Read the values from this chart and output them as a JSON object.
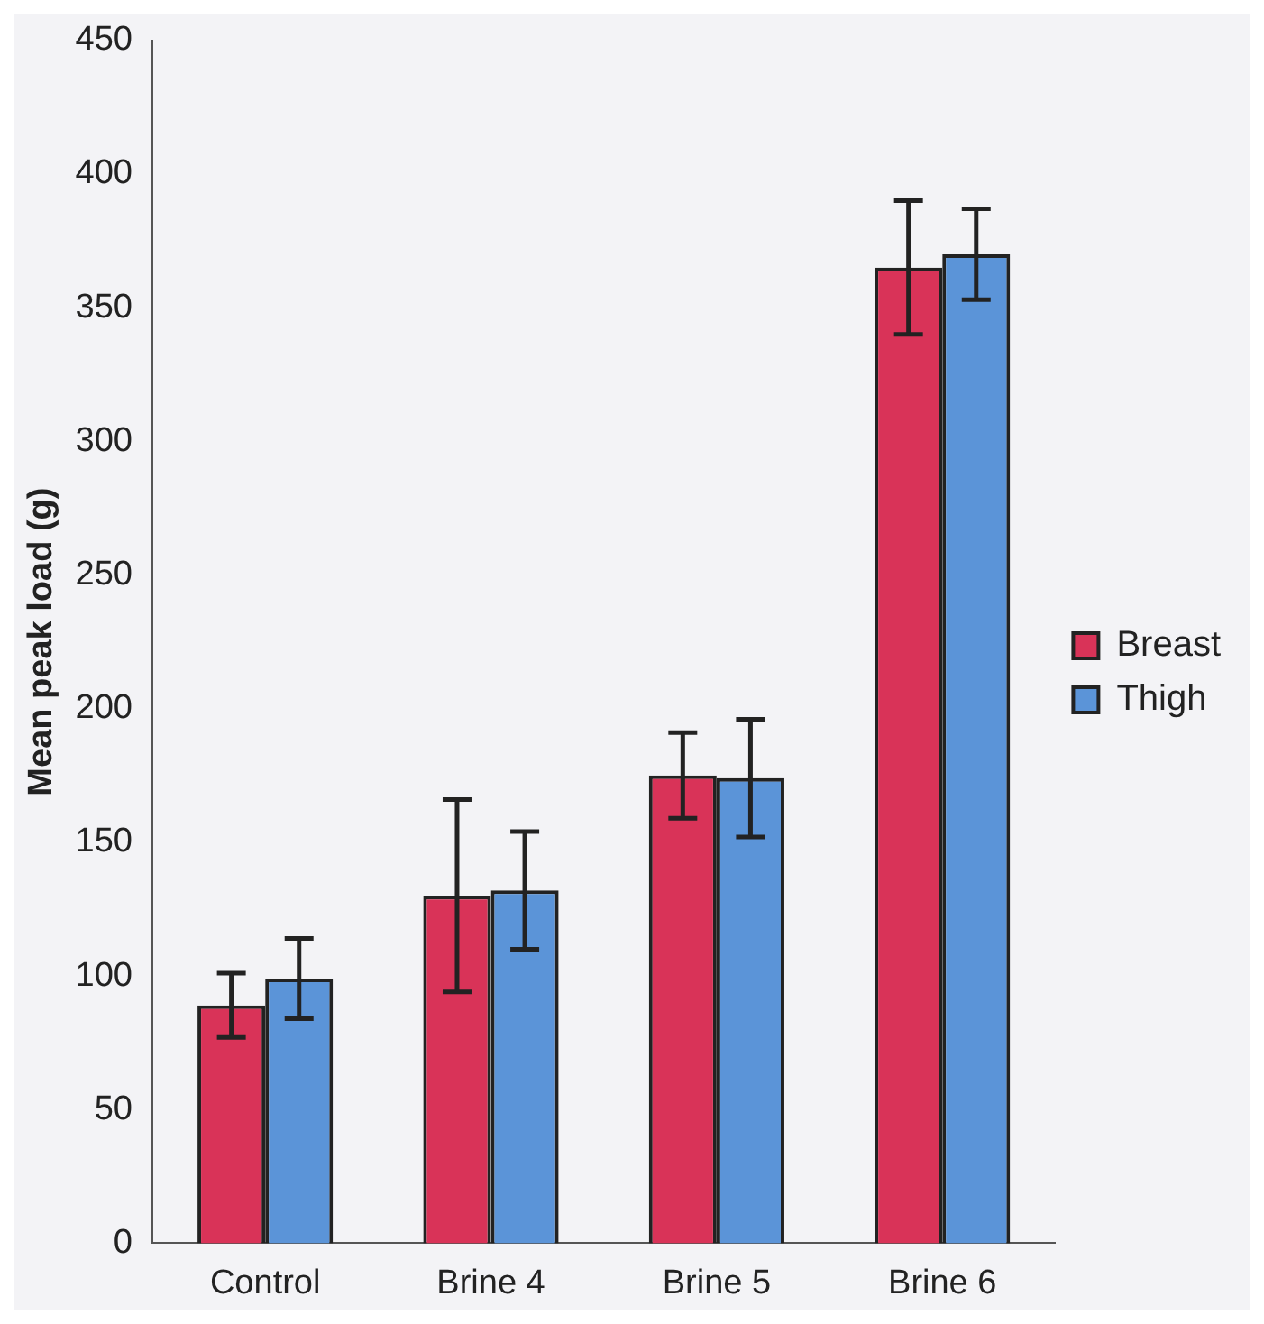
{
  "chart_data": {
    "type": "bar",
    "ylabel": "Mean peak load (g)",
    "categories": [
      "Control",
      "Brine 4",
      "Brine 5",
      "Brine 6"
    ],
    "series": [
      {
        "name": "Breast",
        "color": "#d93358",
        "values": [
          89,
          130,
          175,
          365
        ],
        "errors": [
          12,
          36,
          16,
          25
        ]
      },
      {
        "name": "Thigh",
        "color": "#5b94d8",
        "values": [
          99,
          132,
          174,
          370
        ],
        "errors": [
          15,
          22,
          22,
          17
        ]
      }
    ],
    "ylim": [
      0,
      450
    ],
    "yticks": [
      0,
      50,
      100,
      150,
      200,
      250,
      300,
      350,
      400,
      450
    ],
    "grid": false,
    "legend": "right"
  }
}
